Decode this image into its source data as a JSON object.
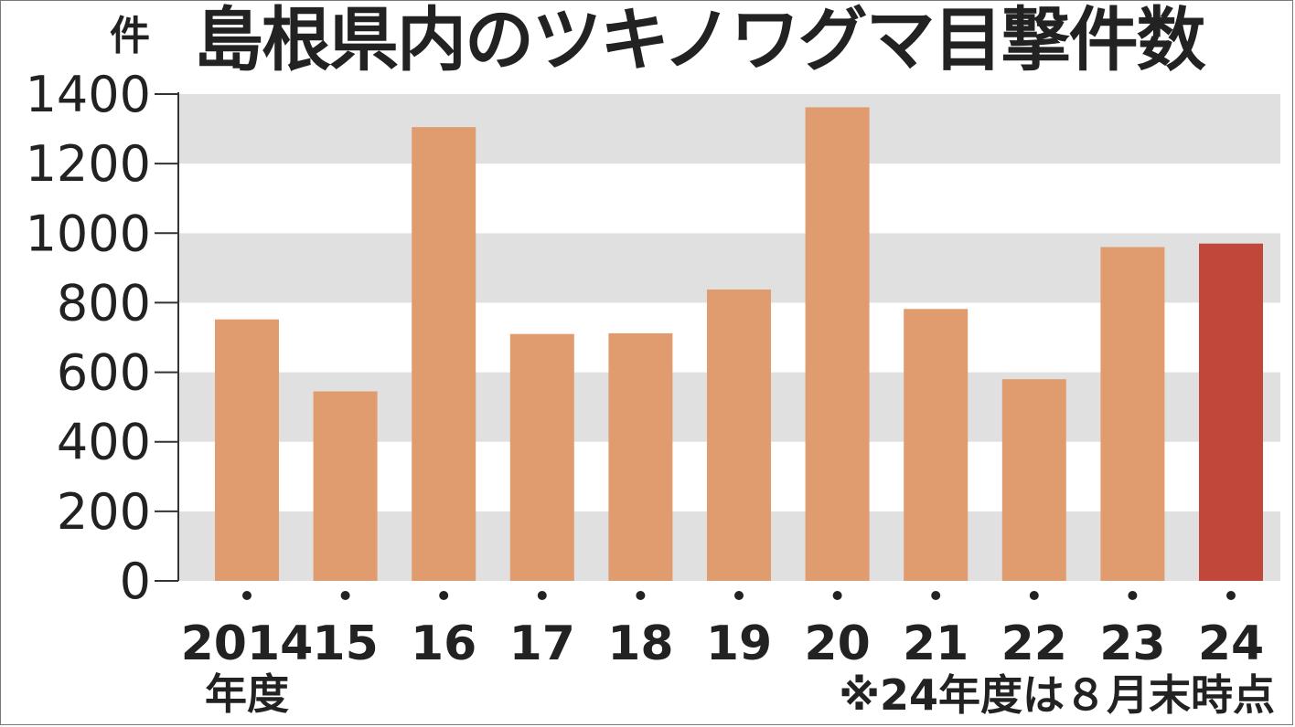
{
  "chart_data": {
    "type": "bar",
    "title": "島根県内のツキノワグマ目撃件数",
    "unit": "件",
    "xlabel": "年度",
    "ylabel": "",
    "ylim": [
      0,
      1400
    ],
    "yticks": [
      0,
      200,
      400,
      600,
      800,
      1000,
      1200,
      1400
    ],
    "categories": [
      "2014",
      "15",
      "16",
      "17",
      "18",
      "19",
      "20",
      "21",
      "22",
      "23",
      "24"
    ],
    "values": [
      752,
      545,
      1305,
      710,
      712,
      838,
      1362,
      782,
      580,
      960,
      970
    ],
    "highlight_index": 10,
    "colors": {
      "bar": "#e09c6e",
      "bar_highlight": "#c0473a",
      "band_gray": "#e0e0e0",
      "band_white": "#ffffff",
      "axis": "#333333"
    },
    "grid": "alternating horizontal bands",
    "legend": "none",
    "footnote": "※24年度は８月末時点"
  }
}
